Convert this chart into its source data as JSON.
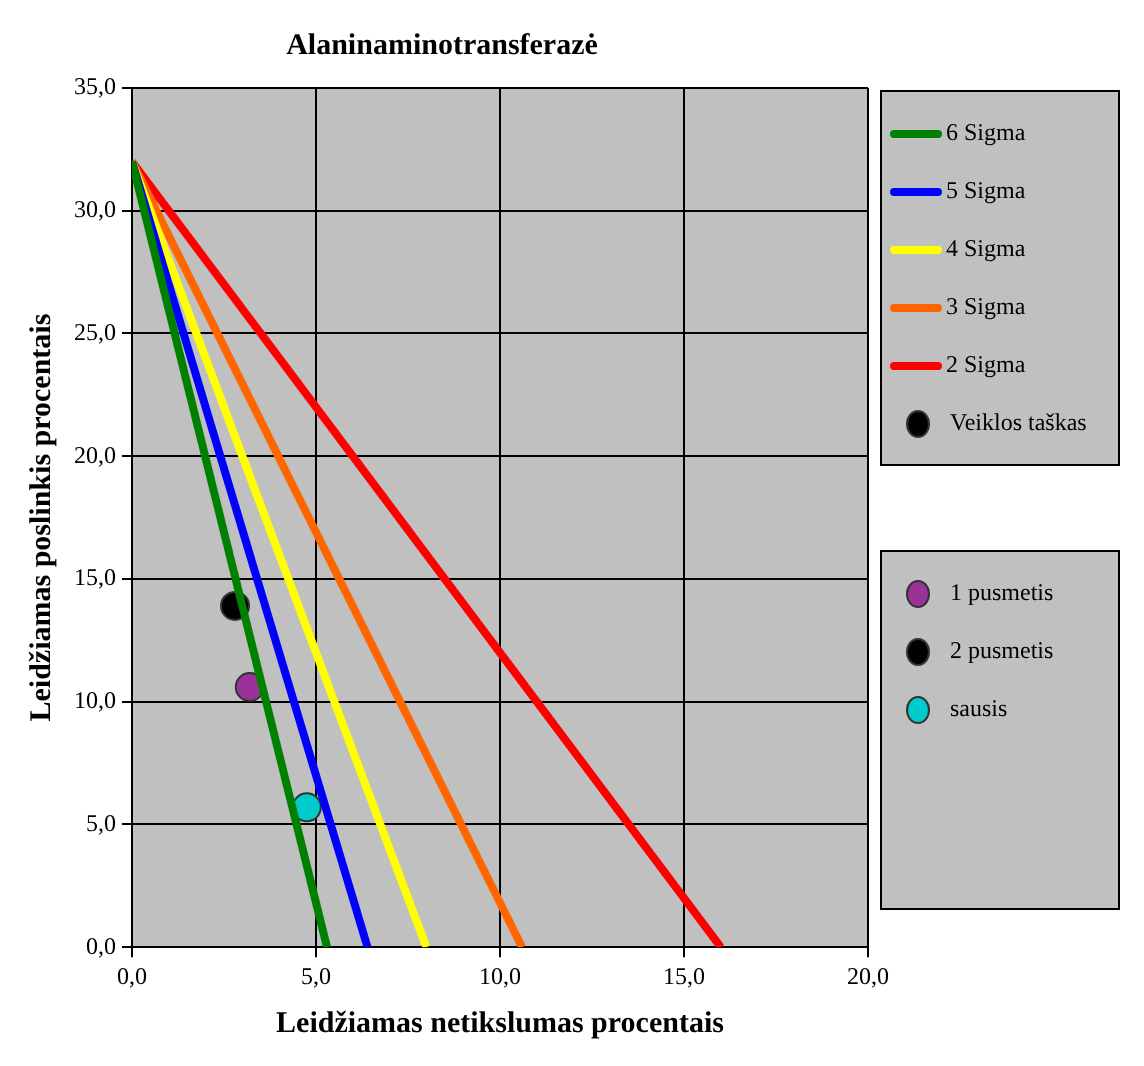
{
  "chart_data": {
    "type": "line",
    "title": "Alaninaminotransferazė",
    "xlabel": "Leidžiamas netikslumas procentais",
    "ylabel": "Leidžiamas poslinkis procentais",
    "xlim": [
      0,
      20
    ],
    "xticks": [
      {
        "value": 0,
        "label": "0,0"
      },
      {
        "value": 5,
        "label": "5,0"
      },
      {
        "value": 10,
        "label": "10,0"
      },
      {
        "value": 15,
        "label": "15,0"
      },
      {
        "value": 20,
        "label": "20,0"
      }
    ],
    "ylim": [
      0,
      35
    ],
    "yticks": [
      {
        "value": 0,
        "label": "0,0"
      },
      {
        "value": 5,
        "label": "5,0"
      },
      {
        "value": 10,
        "label": "10,0"
      },
      {
        "value": 15,
        "label": "15,0"
      },
      {
        "value": 20,
        "label": "20,0"
      },
      {
        "value": 25,
        "label": "25,0"
      },
      {
        "value": 30,
        "label": "30,0"
      },
      {
        "value": 35,
        "label": "35,0"
      }
    ],
    "grid": true,
    "legend": "right",
    "line_style": "solid",
    "series": [
      {
        "name": "6 Sigma",
        "color": "#008000",
        "marker": "none",
        "x": [
          0,
          5.3
        ],
        "values": [
          32,
          0
        ]
      },
      {
        "name": "5 Sigma",
        "color": "#0000ff",
        "marker": "none",
        "x": [
          0,
          6.4
        ],
        "values": [
          32,
          0
        ]
      },
      {
        "name": "4 Sigma",
        "color": "#ffff00",
        "marker": "none",
        "x": [
          0,
          8
        ],
        "values": [
          32,
          0
        ]
      },
      {
        "name": "3 Sigma",
        "color": "#ff6600",
        "marker": "none",
        "x": [
          0,
          10.6
        ],
        "values": [
          32,
          0
        ]
      },
      {
        "name": "2 Sigma",
        "color": "#ff0000",
        "marker": "none",
        "x": [
          0,
          16
        ],
        "values": [
          32,
          0
        ]
      },
      {
        "name": "Veiklos taškas",
        "type": "scatter",
        "marker": "circle",
        "color": "#000000",
        "x": [
          null
        ],
        "values": [
          null
        ]
      },
      {
        "name": "1 pusmetis",
        "type": "scatter",
        "marker": "circle",
        "color": "#993399",
        "x": [
          3.2
        ],
        "values": [
          10.6
        ]
      },
      {
        "name": "2 pusmetis",
        "type": "scatter",
        "marker": "circle",
        "color": "#000000",
        "x": [
          2.8
        ],
        "values": [
          13.9
        ]
      },
      {
        "name": "sausis",
        "type": "scatter",
        "marker": "circle",
        "color": "#00cccc",
        "x": [
          4.75
        ],
        "values": [
          5.7
        ]
      }
    ]
  }
}
